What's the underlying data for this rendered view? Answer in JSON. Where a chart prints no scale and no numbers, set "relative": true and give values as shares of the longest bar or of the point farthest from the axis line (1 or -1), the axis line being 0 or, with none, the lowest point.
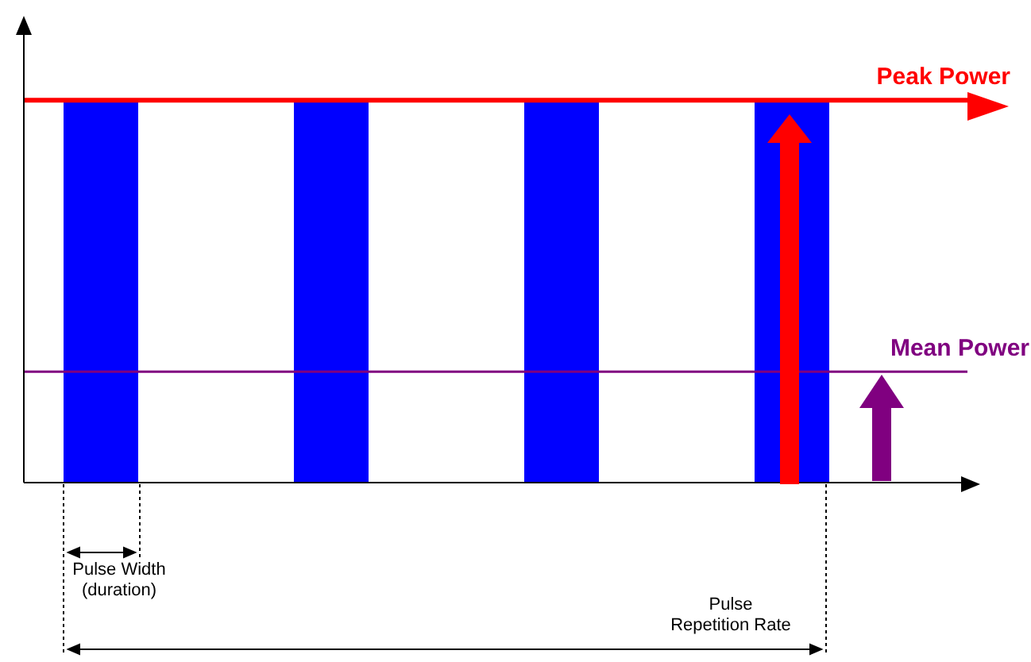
{
  "chart_data": {
    "type": "bar",
    "relative": true,
    "categories": [
      null,
      null,
      null,
      null
    ],
    "values": [
      1,
      1,
      1,
      1
    ],
    "color": "#0000ff",
    "ref_lines": [
      {
        "axis": "y",
        "value": 1,
        "label": "Peak Power",
        "color": "#ff0000"
      },
      {
        "axis": "y",
        "value": 0.29,
        "label": "Mean Power",
        "color": "#800080"
      }
    ],
    "annotations": [
      "Pulse Width (duration)",
      "Pulse Repetition Rate"
    ]
  }
}
